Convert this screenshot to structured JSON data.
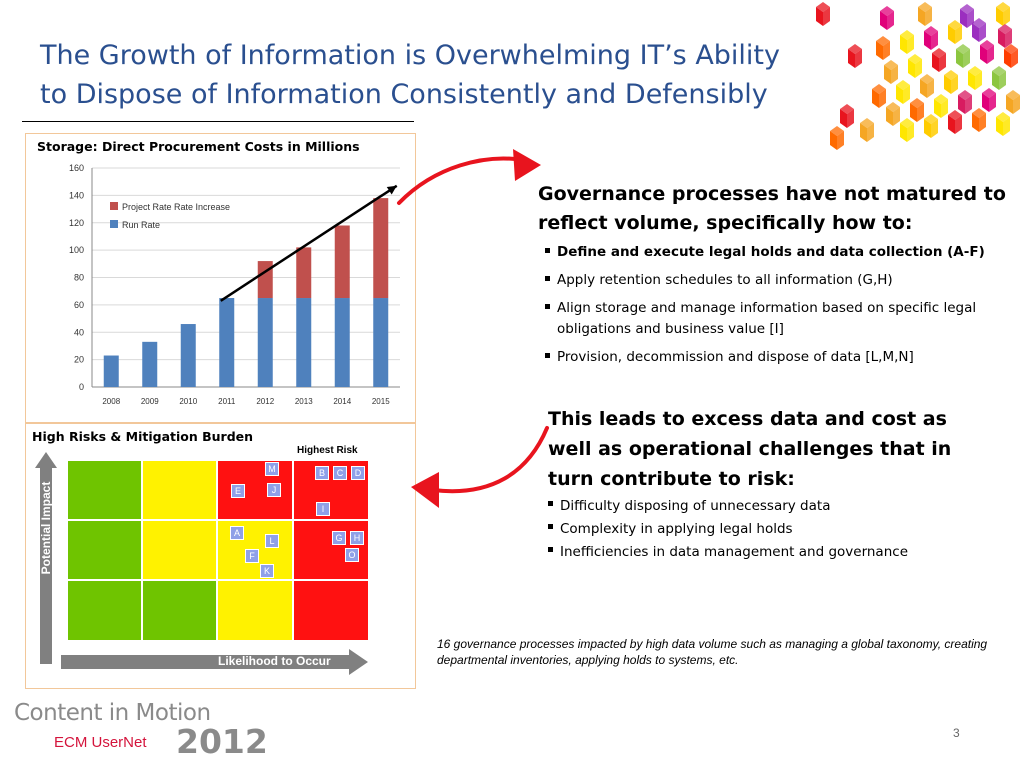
{
  "title": {
    "line1": "The Growth of Information is Overwhelming IT’s Ability",
    "line2": "to Dispose of Information Consistently and Defensibly"
  },
  "chart_panel": {
    "title": "Storage: Direct Procurement Costs in Millions"
  },
  "chart_data": {
    "type": "bar",
    "stacked": true,
    "categories": [
      "2008",
      "2009",
      "2010",
      "2011",
      "2012",
      "2013",
      "2014",
      "2015"
    ],
    "series": [
      {
        "name": "Run Rate",
        "color": "#4f81bd",
        "values": [
          23,
          33,
          46,
          65,
          65,
          65,
          65,
          65
        ]
      },
      {
        "name": "Project Rate Rate Increase",
        "color": "#c0504d",
        "values": [
          0,
          0,
          0,
          0,
          27,
          37,
          53,
          73
        ]
      }
    ],
    "y_ticks": [
      "0",
      "20",
      "40",
      "60",
      "80",
      "100",
      "120",
      "140",
      "160"
    ],
    "ylim": [
      0,
      160
    ],
    "grid": true,
    "legend_placement": "top-left",
    "trend_arrow": {
      "from": [
        2011,
        63
      ],
      "to": [
        2015,
        147
      ]
    }
  },
  "risk_panel": {
    "title": "High Risks & Mitigation Burden",
    "highest_risk_label": "Highest Risk",
    "y_axis_label": "Potential Impact",
    "x_axis_label": "Likelihood to Occur",
    "colors": {
      "green": "#6fc400",
      "yellow": "#fff200",
      "red": "#ff1111"
    },
    "tags": [
      "M",
      "B",
      "C",
      "D",
      "E",
      "J",
      "I",
      "A",
      "L",
      "G",
      "H",
      "F",
      "O",
      "K"
    ]
  },
  "governance": {
    "heading": "Governance processes have not matured to reflect volume, specifically how to:",
    "items": [
      "Define and execute legal holds and data collection (A-F)",
      "Apply retention schedules to all information (G,H)",
      "Align storage and manage information based on specific legal obligations and business value [I]",
      "Provision, decommission and dispose of data  [L,M,N]"
    ]
  },
  "excess": {
    "heading": "This leads to excess data and cost as well as operational challenges that in turn contribute to risk:",
    "items": [
      "Difficulty disposing of unnecessary data",
      "Complexity in applying legal holds",
      "Inefficiencies in data management and governance"
    ]
  },
  "note": "16 governance processes impacted by high data volume such as  managing a global taxonomy, creating departmental inventories, applying holds to systems, etc.",
  "page_number": "3",
  "logo": {
    "line1": "Content in Motion",
    "line2": "ECM UserNet",
    "year": "2012"
  }
}
